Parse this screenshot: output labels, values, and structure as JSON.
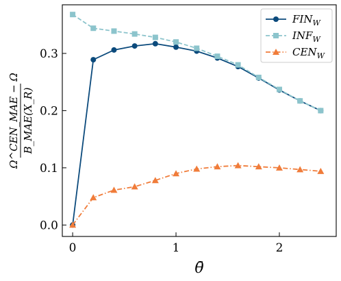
{
  "chart_data": {
    "type": "line",
    "xlabel": "θ̄",
    "ylabel": {
      "numerator": "Ω^CEN_MAE − Ω",
      "denominator": "B_MAE(X_R)"
    },
    "xlim": [
      -0.1,
      2.55
    ],
    "ylim": [
      -0.02,
      0.385
    ],
    "x_ticks": [
      0,
      1,
      2
    ],
    "x_tick_labels": [
      "0",
      "1",
      "2"
    ],
    "y_ticks": [
      0.0,
      0.1,
      0.2,
      0.3
    ],
    "y_tick_labels": [
      "0.0",
      "0.1",
      "0.2",
      "0.3"
    ],
    "grid": false,
    "legend_position": "top-right",
    "x": [
      0.0,
      0.2,
      0.4,
      0.6,
      0.8,
      1.0,
      1.2,
      1.4,
      1.6,
      1.8,
      2.0,
      2.2,
      2.4
    ],
    "series": [
      {
        "name": "FIN_W",
        "legend_base": "FIN",
        "legend_sub": "W",
        "color": "#0b4a7c",
        "line_style": "solid",
        "marker": "circle",
        "values": [
          0.0,
          0.289,
          0.306,
          0.313,
          0.317,
          0.311,
          0.304,
          0.292,
          0.277,
          0.257,
          0.236,
          0.217,
          0.2
        ]
      },
      {
        "name": "INF_W",
        "legend_base": "INF",
        "legend_sub": "W",
        "color": "#8cc4cc",
        "line_style": "dashed",
        "marker": "square",
        "values": [
          0.368,
          0.344,
          0.339,
          0.334,
          0.328,
          0.32,
          0.309,
          0.295,
          0.28,
          0.258,
          0.237,
          0.217,
          0.2
        ]
      },
      {
        "name": "CEN_W",
        "legend_base": "CEN",
        "legend_sub": "W",
        "color": "#f07c3a",
        "line_style": "dashdot",
        "marker": "triangle",
        "values": [
          0.0,
          0.048,
          0.061,
          0.067,
          0.078,
          0.09,
          0.098,
          0.102,
          0.104,
          0.102,
          0.1,
          0.097,
          0.094
        ]
      }
    ]
  }
}
